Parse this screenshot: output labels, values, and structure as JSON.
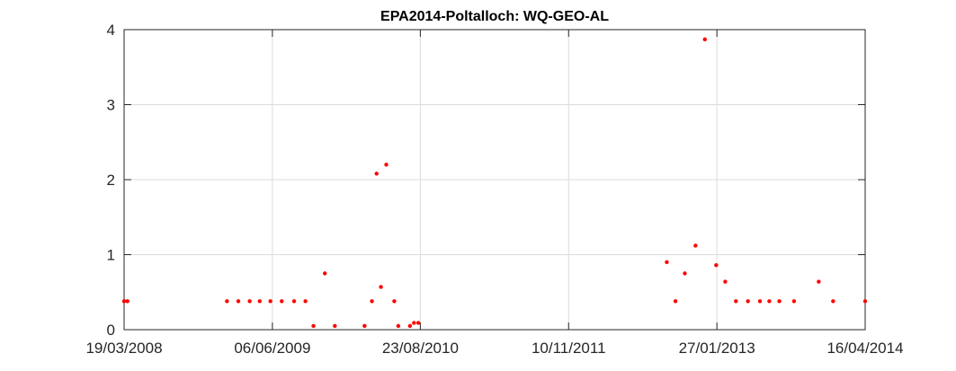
{
  "chart_data": {
    "type": "scatter",
    "title": "EPA2014-Poltalloch: WQ-GEO-AL",
    "xlabel": "",
    "ylabel": "",
    "x_axis": "date",
    "xlim": [
      "2008-03-19",
      "2014-04-16"
    ],
    "xticks": [
      {
        "date": "2008-03-19",
        "label": "19/03/2008"
      },
      {
        "date": "2009-06-06",
        "label": "06/06/2009"
      },
      {
        "date": "2010-08-23",
        "label": "23/08/2010"
      },
      {
        "date": "2011-11-10",
        "label": "10/11/2011"
      },
      {
        "date": "2013-01-27",
        "label": "27/01/2013"
      },
      {
        "date": "2014-04-16",
        "label": "16/04/2014"
      }
    ],
    "ylim": [
      0,
      4
    ],
    "yticks": [
      "0",
      "1",
      "2",
      "3",
      "4"
    ],
    "grid": true,
    "marker_color": "#ff0000",
    "points": [
      {
        "x": "2008-03-19",
        "y": 0.38
      },
      {
        "x": "2008-03-29",
        "y": 0.38
      },
      {
        "x": "2009-01-21",
        "y": 0.38
      },
      {
        "x": "2009-02-24",
        "y": 0.38
      },
      {
        "x": "2009-03-30",
        "y": 0.38
      },
      {
        "x": "2009-04-29",
        "y": 0.38
      },
      {
        "x": "2009-05-31",
        "y": 0.38
      },
      {
        "x": "2009-07-04",
        "y": 0.38
      },
      {
        "x": "2009-08-10",
        "y": 0.38
      },
      {
        "x": "2009-09-13",
        "y": 0.38
      },
      {
        "x": "2009-10-07",
        "y": 0.05
      },
      {
        "x": "2009-11-10",
        "y": 0.75
      },
      {
        "x": "2009-12-10",
        "y": 0.05
      },
      {
        "x": "2010-03-09",
        "y": 0.05
      },
      {
        "x": "2010-03-31",
        "y": 0.38
      },
      {
        "x": "2010-04-14",
        "y": 2.08
      },
      {
        "x": "2010-04-27",
        "y": 0.57
      },
      {
        "x": "2010-05-13",
        "y": 2.2
      },
      {
        "x": "2010-06-06",
        "y": 0.38
      },
      {
        "x": "2010-06-18",
        "y": 0.05
      },
      {
        "x": "2010-07-23",
        "y": 0.05
      },
      {
        "x": "2010-08-04",
        "y": 0.09
      },
      {
        "x": "2010-08-17",
        "y": 0.09
      },
      {
        "x": "2012-08-30",
        "y": 0.9
      },
      {
        "x": "2012-09-25",
        "y": 0.38
      },
      {
        "x": "2012-10-23",
        "y": 0.75
      },
      {
        "x": "2012-11-24",
        "y": 1.12
      },
      {
        "x": "2012-12-22",
        "y": 3.87
      },
      {
        "x": "2013-01-25",
        "y": 0.86
      },
      {
        "x": "2013-02-21",
        "y": 0.64
      },
      {
        "x": "2013-03-25",
        "y": 0.38
      },
      {
        "x": "2013-04-30",
        "y": 0.38
      },
      {
        "x": "2013-06-05",
        "y": 0.38
      },
      {
        "x": "2013-07-03",
        "y": 0.38
      },
      {
        "x": "2013-08-02",
        "y": 0.38
      },
      {
        "x": "2013-09-15",
        "y": 0.38
      },
      {
        "x": "2013-11-28",
        "y": 0.64
      },
      {
        "x": "2014-01-10",
        "y": 0.38
      },
      {
        "x": "2014-04-16",
        "y": 0.38
      }
    ]
  }
}
